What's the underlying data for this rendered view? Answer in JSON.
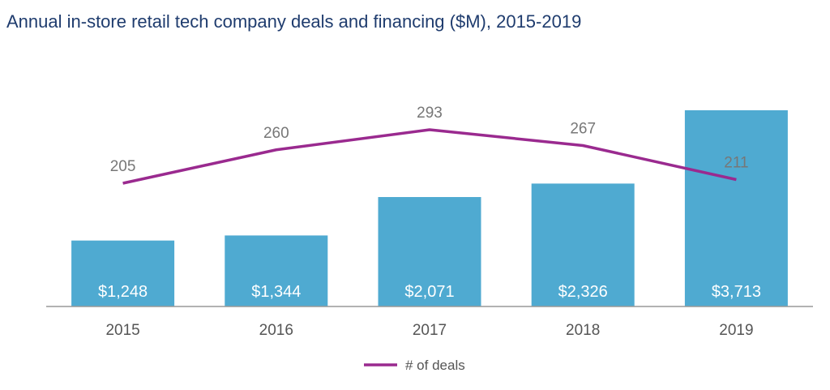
{
  "chart_data": {
    "type": "bar",
    "title": "Annual in-store retail tech company deals and financing ($M), 2015-2019",
    "categories": [
      "2015",
      "2016",
      "2017",
      "2018",
      "2019"
    ],
    "series": [
      {
        "kind": "bar",
        "values": [
          1248,
          1344,
          2071,
          2326,
          3713
        ],
        "value_labels": [
          "$1,248",
          "$1,344",
          "$2,071",
          "$2,326",
          "$3,713"
        ],
        "color": "#4faad1"
      },
      {
        "kind": "line",
        "name": "# of deals",
        "values": [
          205,
          260,
          293,
          267,
          211
        ],
        "value_labels": [
          "205",
          "260",
          "293",
          "267",
          "211"
        ],
        "color": "#9a2a8f"
      }
    ],
    "legend_position": "bottom-center",
    "grid": false,
    "axis_color": "#999999"
  }
}
